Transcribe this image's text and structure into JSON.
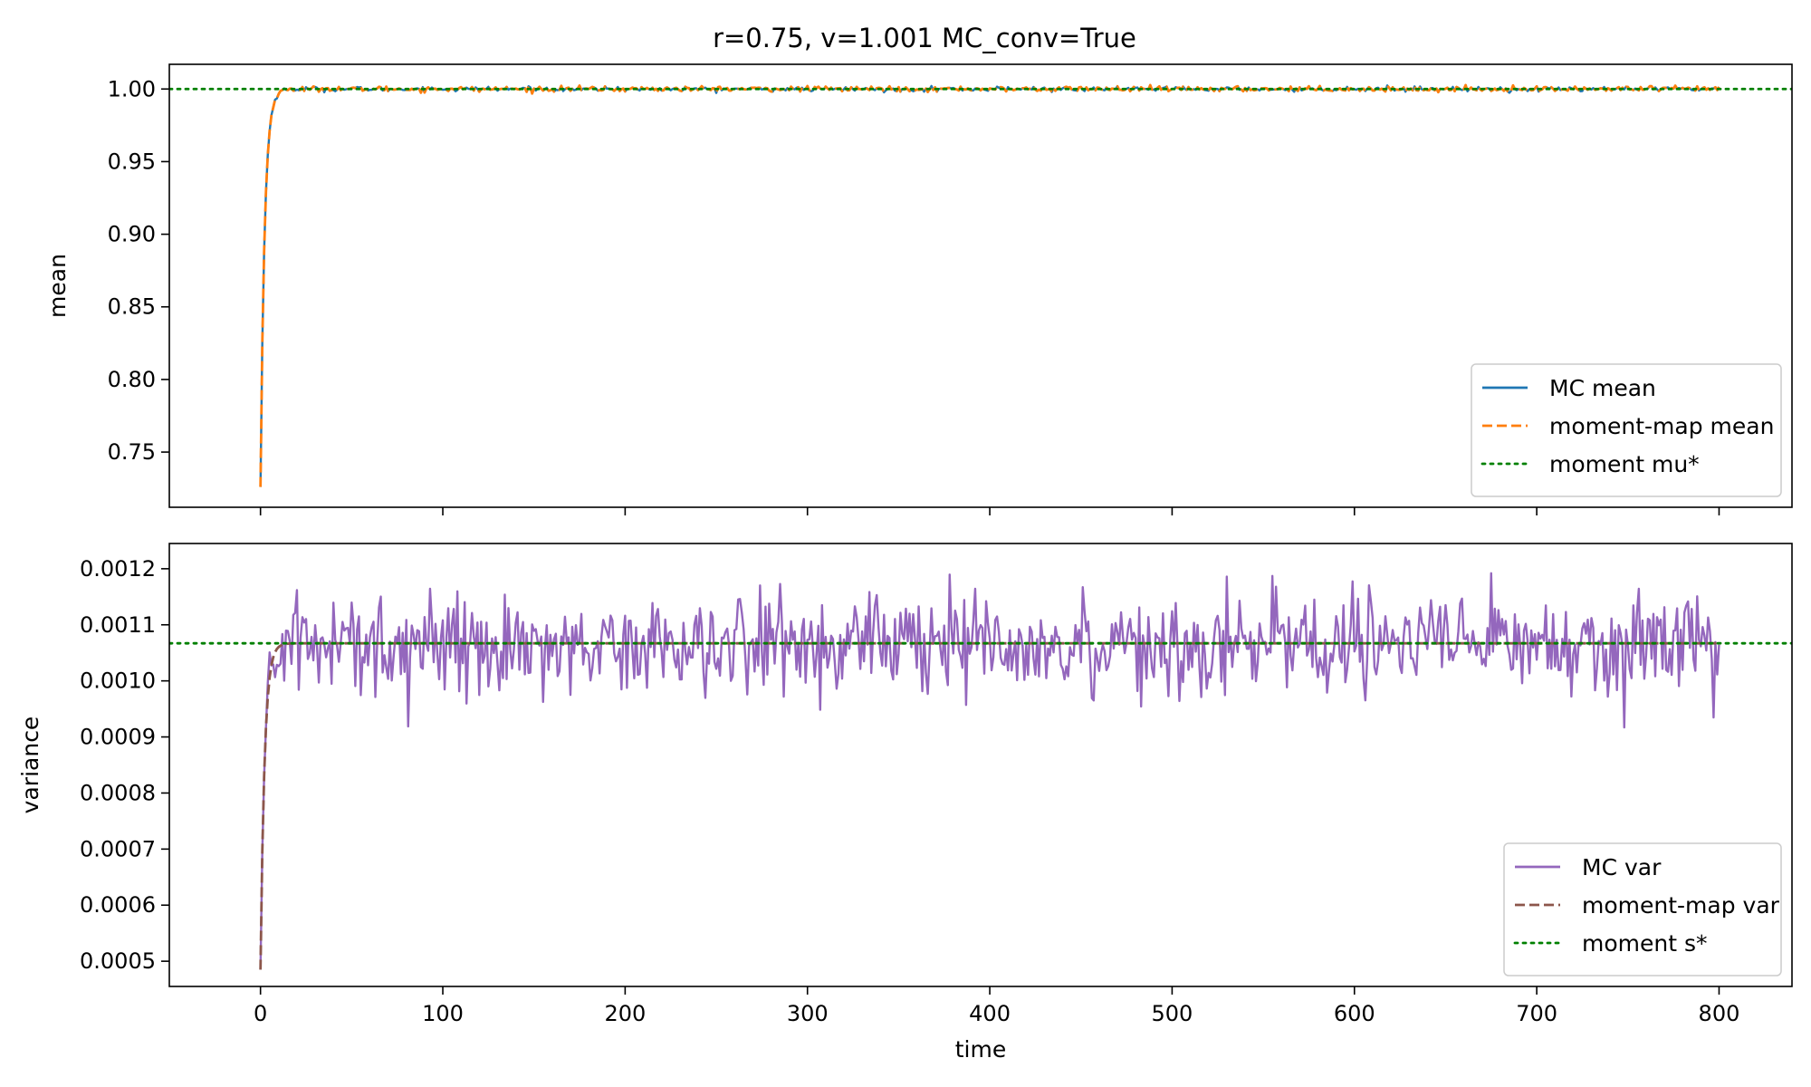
{
  "figure": {
    "title": "r=0.75, v=1.001   MC_conv=True"
  },
  "colors": {
    "mc_mean": "#1f77b4",
    "mm_mean": "#ff7f0e",
    "mu_star": "#008000",
    "mc_var": "#9467bd",
    "mm_var": "#8c564b",
    "s_star": "#008000"
  },
  "chart_data": [
    {
      "type": "line",
      "title": "r=0.75, v=1.001   MC_conv=True",
      "xlabel": "",
      "ylabel": "mean",
      "xlim": [
        -50,
        840
      ],
      "ylim": [
        0.712,
        1.017
      ],
      "xticks": [
        0,
        100,
        200,
        300,
        400,
        500,
        600,
        700,
        800
      ],
      "xtick_labels_visible": false,
      "yticks": [
        0.75,
        0.8,
        0.85,
        0.9,
        0.95,
        1.0
      ],
      "ytick_labels": [
        "0.75",
        "0.80",
        "0.85",
        "0.90",
        "0.95",
        "1.00"
      ],
      "grid": false,
      "legend": "lower-right",
      "series": [
        {
          "name": "MC mean",
          "style": "solid",
          "color": "#1f77b4",
          "kind": "noisy",
          "start": 0.726,
          "target": 1.0,
          "rate": 0.45,
          "noise": 0.0009,
          "x_end": 800
        },
        {
          "name": "moment-map mean",
          "style": "dashed",
          "color": "#ff7f0e",
          "kind": "noisy",
          "start": 0.726,
          "target": 1.0,
          "rate": 0.45,
          "noise": 0.0009,
          "x_end": 800
        },
        {
          "name": "moment mu*",
          "style": "dotted",
          "color": "#008000",
          "kind": "hline",
          "value": 1.0
        }
      ]
    },
    {
      "type": "line",
      "title": "",
      "xlabel": "time",
      "ylabel": "variance",
      "xlim": [
        -50,
        840
      ],
      "ylim": [
        0.000455,
        0.001245
      ],
      "xticks": [
        0,
        100,
        200,
        300,
        400,
        500,
        600,
        700,
        800
      ],
      "xtick_labels": [
        "0",
        "100",
        "200",
        "300",
        "400",
        "500",
        "600",
        "700",
        "800"
      ],
      "yticks": [
        0.0005,
        0.0006,
        0.0007,
        0.0008,
        0.0009,
        0.001,
        0.0011,
        0.0012
      ],
      "ytick_labels": [
        "0.0005",
        "0.0006",
        "0.0007",
        "0.0008",
        "0.0009",
        "0.0010",
        "0.0011",
        "0.0012"
      ],
      "grid": false,
      "legend": "lower-right",
      "series": [
        {
          "name": "MC var",
          "style": "solid",
          "color": "#9467bd",
          "kind": "noisy",
          "start": 0.000485,
          "target": 0.001067,
          "rate": 0.45,
          "noise": 4.5e-05,
          "x_end": 800
        },
        {
          "name": "moment-map var",
          "style": "dashed",
          "color": "#8c564b",
          "kind": "relax",
          "start": 0.000485,
          "target": 0.001067,
          "rate": 0.45,
          "x_end": 800
        },
        {
          "name": "moment s*",
          "style": "dotted",
          "color": "#008000",
          "kind": "hline",
          "value": 0.001067
        }
      ]
    }
  ]
}
